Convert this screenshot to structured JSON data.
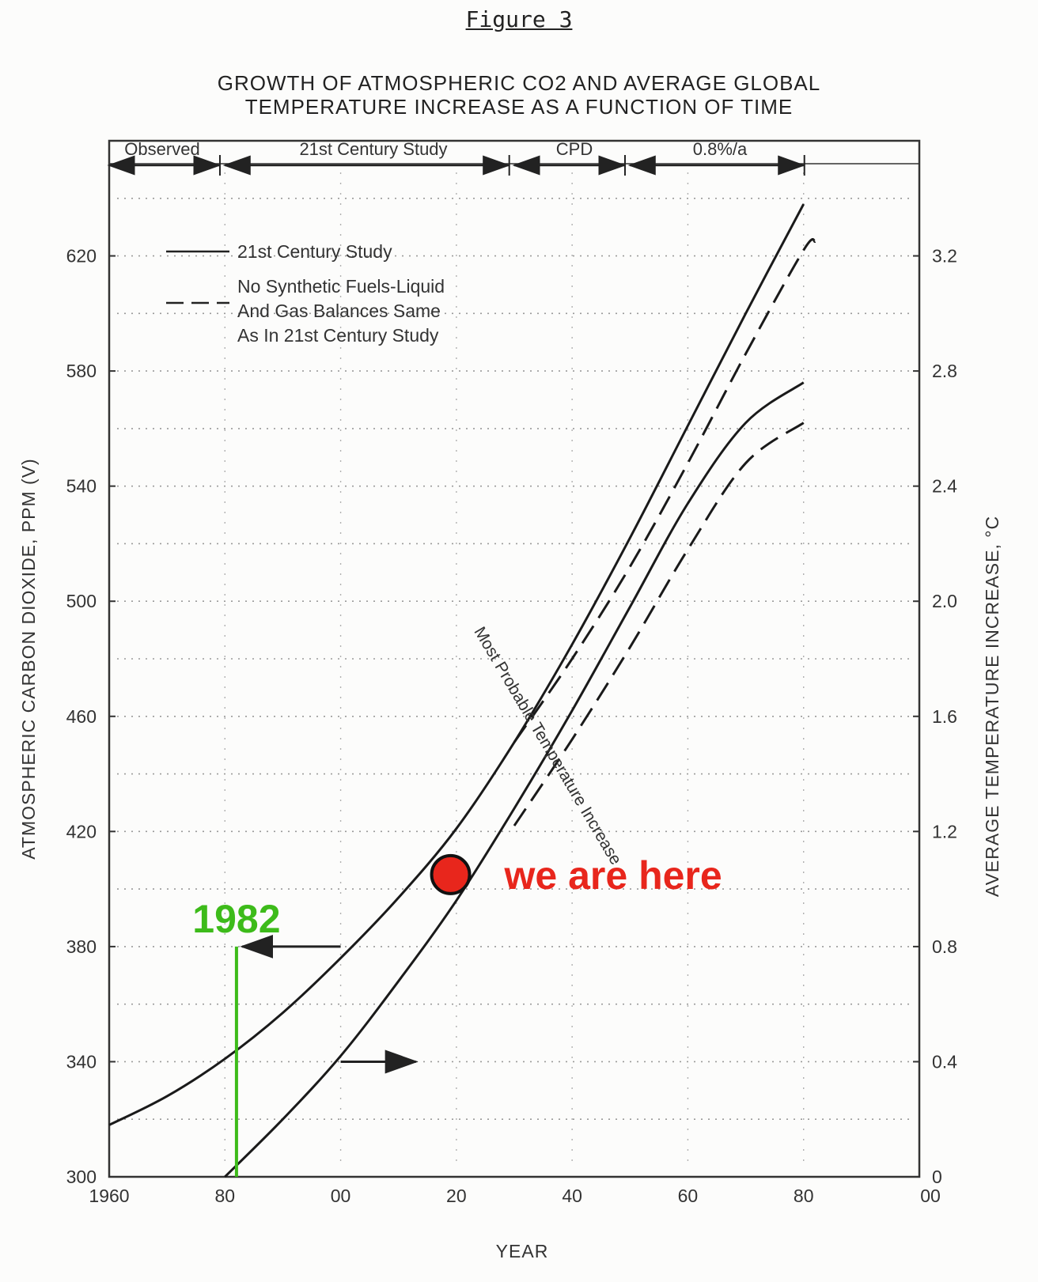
{
  "figure_label": "Figure 3",
  "chart_data": {
    "type": "line",
    "title": "GROWTH OF ATMOSPHERIC CO2 AND AVERAGE GLOBAL",
    "subtitle": "TEMPERATURE INCREASE AS A FUNCTION OF TIME",
    "xlabel": "YEAR",
    "ylabel": "ATMOSPHERIC CARBON DIOXIDE, PPM (V)",
    "y2label": "AVERAGE TEMPERATURE INCREASE, °C",
    "xlim": [
      1960,
      2100
    ],
    "ylim": [
      300,
      660
    ],
    "y2lim": [
      0,
      3.6
    ],
    "x_ticks": [
      {
        "value": 1960,
        "label": "1960"
      },
      {
        "value": 1980,
        "label": "80"
      },
      {
        "value": 2000,
        "label": "00"
      },
      {
        "value": 2020,
        "label": "20"
      },
      {
        "value": 2040,
        "label": "40"
      },
      {
        "value": 2060,
        "label": "60"
      },
      {
        "value": 2080,
        "label": "80"
      },
      {
        "value": 2100,
        "label": "00"
      }
    ],
    "y_ticks": [
      300,
      340,
      380,
      420,
      460,
      500,
      540,
      580,
      620
    ],
    "y2_ticks": [
      {
        "value": 0,
        "label": "0"
      },
      {
        "value": 0.4,
        "label": "0.4"
      },
      {
        "value": 0.8,
        "label": "0.8"
      },
      {
        "value": 1.2,
        "label": "1.2"
      },
      {
        "value": 1.6,
        "label": "1.6"
      },
      {
        "value": 2.0,
        "label": "2.0"
      },
      {
        "value": 2.4,
        "label": "2.4"
      },
      {
        "value": 2.8,
        "label": "2.8"
      },
      {
        "value": 3.2,
        "label": "3.2"
      }
    ],
    "bands": [
      {
        "label": "Observed",
        "from": 1960,
        "to": 1979
      },
      {
        "label": "21st Century Study",
        "from": 1980,
        "to": 2029
      },
      {
        "label": "CPD",
        "from": 2030,
        "to": 2049
      },
      {
        "label": "0.8%/a",
        "from": 2050,
        "to": 2080
      }
    ],
    "legend": [
      {
        "style": "solid",
        "lines": [
          "21st Century Study"
        ]
      },
      {
        "style": "dashed",
        "lines": [
          "No Synthetic Fuels-Liquid",
          "And Gas Balances Same",
          "As In 21st Century Study"
        ]
      }
    ],
    "series": [
      {
        "axis": "left",
        "style": "solid",
        "x": [
          1960,
          1970,
          1980,
          1990,
          2000,
          2010,
          2020,
          2030,
          2040,
          2050,
          2060,
          2070,
          2080
        ],
        "y": [
          318,
          328,
          341,
          357,
          376,
          397,
          421,
          451,
          485,
          522,
          561,
          600,
          638
        ]
      },
      {
        "axis": "left",
        "style": "dashed",
        "x": [
          2030,
          2040,
          2050,
          2060,
          2070,
          2080,
          2082
        ],
        "y": [
          451,
          480,
          512,
          548,
          586,
          622,
          625
        ]
      },
      {
        "axis": "right",
        "style": "solid",
        "x": [
          1980,
          1990,
          2000,
          2010,
          2020,
          2030,
          2040,
          2050,
          2060,
          2070,
          2080
        ],
        "y": [
          0.0,
          0.2,
          0.42,
          0.68,
          0.96,
          1.28,
          1.62,
          1.98,
          2.34,
          2.62,
          2.76
        ]
      },
      {
        "axis": "right",
        "style": "dashed",
        "x": [
          2030,
          2040,
          2050,
          2060,
          2070,
          2080
        ],
        "y": [
          1.22,
          1.52,
          1.84,
          2.18,
          2.48,
          2.62
        ]
      }
    ],
    "curve_label": "Most Probable Temperature Increase",
    "annotations": {
      "here_label": "we are here",
      "here_point": {
        "x": 2019,
        "y": 405
      },
      "year_label": "1982",
      "year_x": 1982
    }
  }
}
